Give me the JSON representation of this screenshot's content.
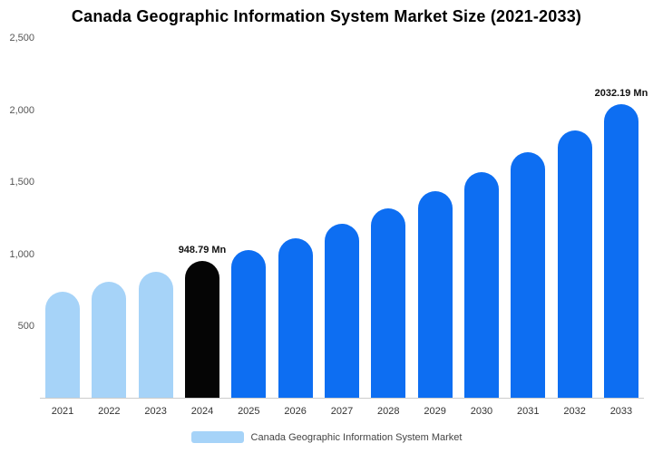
{
  "title": "Canada Geographic Information System Market Size (2021-2033)",
  "colors": {
    "historic": "#a6d3f8",
    "current": "#050505",
    "forecast": "#0d6ef2",
    "axis_text": "#555555",
    "baseline": "#cccccc"
  },
  "legend": {
    "label": "Canada Geographic Information System Market",
    "swatch_color": "#a6d3f8"
  },
  "chart_data": {
    "type": "bar",
    "title": "Canada Geographic Information System Market Size (2021-2033)",
    "categories": [
      "2021",
      "2022",
      "2023",
      "2024",
      "2025",
      "2026",
      "2027",
      "2028",
      "2029",
      "2030",
      "2031",
      "2032",
      "2033"
    ],
    "values": [
      736,
      801,
      872,
      948.79,
      1026,
      1106,
      1206,
      1312,
      1431,
      1562,
      1700,
      1850,
      2032.19
    ],
    "bar_roles": [
      "historic",
      "historic",
      "historic",
      "current",
      "forecast",
      "forecast",
      "forecast",
      "forecast",
      "forecast",
      "forecast",
      "forecast",
      "forecast",
      "forecast"
    ],
    "data_labels": [
      null,
      null,
      null,
      "948.79 Mn",
      null,
      null,
      null,
      null,
      null,
      null,
      null,
      null,
      "2032.19 Mn"
    ],
    "xlabel": "",
    "ylabel": "",
    "ylim": [
      0,
      2500
    ],
    "yticks": [
      {
        "label": "500",
        "value": 500
      },
      {
        "label": "1,000",
        "value": 1000
      },
      {
        "label": "1,500",
        "value": 1500
      },
      {
        "label": "2,000",
        "value": 2000
      },
      {
        "label": "2,500",
        "value": 2500
      }
    ],
    "grid": false,
    "legend_entries": [
      "Canada Geographic Information System Market"
    ],
    "legend_position": "bottom",
    "units": "Mn"
  }
}
